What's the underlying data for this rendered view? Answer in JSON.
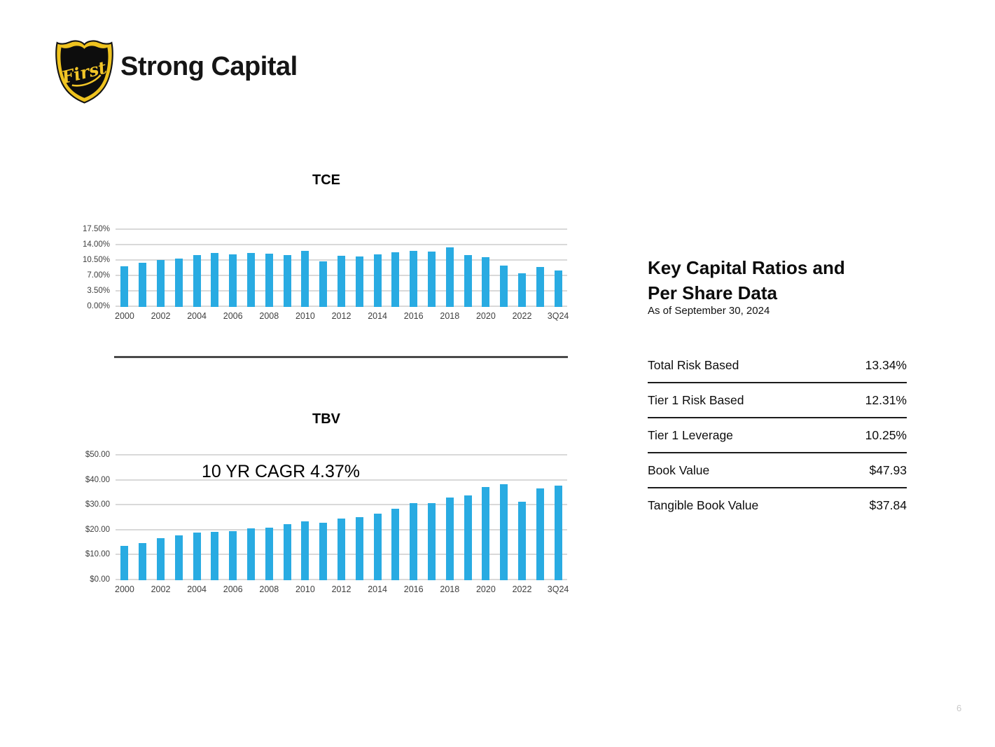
{
  "header": {
    "logo_text": "First",
    "title": "Strong Capital"
  },
  "chart_data": [
    {
      "id": "tce",
      "type": "bar",
      "title": "TCE",
      "bar_color": "#29ABE2",
      "ymax": 17.5,
      "ylim": [
        0,
        17.5
      ],
      "grid": true,
      "y_ticks": [
        "17.50%",
        "14.00%",
        "10.50%",
        "7.00%",
        "3.50%",
        "0.00%"
      ],
      "categories": [
        "2000",
        "2001",
        "2002",
        "2003",
        "2004",
        "2005",
        "2006",
        "2007",
        "2008",
        "2009",
        "2010",
        "2011",
        "2012",
        "2013",
        "2014",
        "2015",
        "2016",
        "2017",
        "2018",
        "2019",
        "2020",
        "2021",
        "2022",
        "2023",
        "3Q24"
      ],
      "x_label_indices": [
        0,
        2,
        4,
        6,
        8,
        10,
        12,
        14,
        16,
        18,
        20,
        22,
        24
      ],
      "values": [
        9.2,
        10.1,
        10.6,
        11.0,
        11.8,
        12.2,
        12.0,
        12.2,
        12.1,
        11.7,
        12.7,
        10.4,
        11.6,
        11.5,
        11.9,
        12.4,
        12.7,
        12.5,
        13.5,
        11.8,
        11.3,
        9.4,
        7.7,
        9.0,
        8.3
      ]
    },
    {
      "id": "tbv",
      "type": "bar",
      "title": "TBV",
      "annotation": "10 YR CAGR 4.37%",
      "bar_color": "#29ABE2",
      "ymax": 50,
      "ylim": [
        0,
        50
      ],
      "grid": true,
      "y_ticks": [
        "$50.00",
        "$40.00",
        "$30.00",
        "$20.00",
        "$10.00",
        "$0.00"
      ],
      "categories": [
        "2000",
        "2001",
        "2002",
        "2003",
        "2004",
        "2005",
        "2006",
        "2007",
        "2008",
        "2009",
        "2010",
        "2011",
        "2012",
        "2013",
        "2014",
        "2015",
        "2016",
        "2017",
        "2018",
        "2019",
        "2020",
        "2021",
        "2022",
        "2023",
        "3Q24"
      ],
      "x_label_indices": [
        0,
        2,
        4,
        6,
        8,
        10,
        12,
        14,
        16,
        18,
        20,
        22,
        24
      ],
      "values": [
        13.9,
        15.0,
        16.8,
        17.9,
        19.0,
        19.4,
        19.7,
        20.8,
        21.1,
        22.4,
        23.5,
        23.0,
        24.6,
        25.4,
        26.8,
        28.6,
        30.8,
        30.8,
        33.1,
        33.9,
        37.4,
        38.6,
        31.6,
        36.7,
        37.84
      ]
    }
  ],
  "key_ratios": {
    "heading_line1": "Key Capital Ratios and",
    "heading_line2": "Per Share Data",
    "as_of": "As of September 30, 2024",
    "rows": [
      {
        "label": "Total Risk Based",
        "value": "13.34%"
      },
      {
        "label": "Tier 1 Risk Based",
        "value": "12.31%"
      },
      {
        "label": "Tier 1 Leverage",
        "value": "10.25%"
      },
      {
        "label": "Book Value",
        "value": "$47.93"
      },
      {
        "label": "Tangible Book Value",
        "value": "$37.84"
      }
    ]
  },
  "page_number": "6"
}
